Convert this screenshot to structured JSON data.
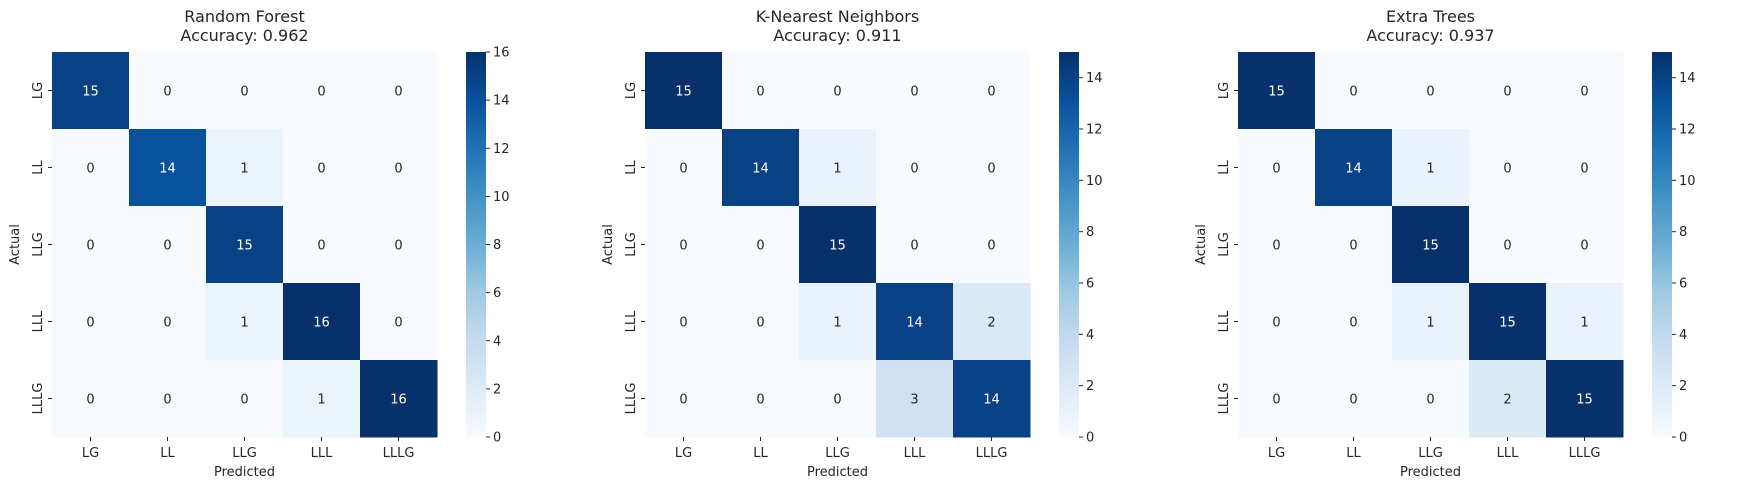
{
  "chart_data": [
    {
      "type": "heatmap",
      "title": "Random Forest",
      "subtitle": "Accuracy: 0.962",
      "xlabel": "Predicted",
      "ylabel": "Actual",
      "x_categories": [
        "LG",
        "LL",
        "LLG",
        "LLL",
        "LLLG"
      ],
      "y_categories": [
        "LG",
        "LL",
        "LLG",
        "LLL",
        "LLLG"
      ],
      "matrix": [
        [
          15,
          0,
          0,
          0,
          0
        ],
        [
          0,
          14,
          1,
          0,
          0
        ],
        [
          0,
          0,
          15,
          0,
          0
        ],
        [
          0,
          0,
          1,
          16,
          0
        ],
        [
          0,
          0,
          0,
          1,
          16
        ]
      ],
      "colorbar": {
        "min": 0,
        "max": 16,
        "ticks": [
          0,
          2,
          4,
          6,
          8,
          10,
          12,
          14,
          16
        ]
      },
      "colormap": [
        "#f7fbff",
        "#deebf7",
        "#c6dbef",
        "#9ecae1",
        "#6baed6",
        "#4292c6",
        "#2171b5",
        "#08519c",
        "#08306b"
      ]
    },
    {
      "type": "heatmap",
      "title": "K-Nearest Neighbors",
      "subtitle": "Accuracy: 0.911",
      "xlabel": "Predicted",
      "ylabel": "Actual",
      "x_categories": [
        "LG",
        "LL",
        "LLG",
        "LLL",
        "LLLG"
      ],
      "y_categories": [
        "LG",
        "LL",
        "LLG",
        "LLL",
        "LLLG"
      ],
      "matrix": [
        [
          15,
          0,
          0,
          0,
          0
        ],
        [
          0,
          14,
          1,
          0,
          0
        ],
        [
          0,
          0,
          15,
          0,
          0
        ],
        [
          0,
          0,
          1,
          14,
          2
        ],
        [
          0,
          0,
          0,
          3,
          14
        ]
      ],
      "colorbar": {
        "min": 0,
        "max": 15,
        "ticks": [
          0,
          2,
          4,
          6,
          8,
          10,
          12,
          14
        ]
      },
      "colormap": [
        "#f7fbff",
        "#deebf7",
        "#c6dbef",
        "#9ecae1",
        "#6baed6",
        "#4292c6",
        "#2171b5",
        "#08519c",
        "#08306b"
      ]
    },
    {
      "type": "heatmap",
      "title": "Extra Trees",
      "subtitle": "Accuracy: 0.937",
      "xlabel": "Predicted",
      "ylabel": "Actual",
      "x_categories": [
        "LG",
        "LL",
        "LLG",
        "LLL",
        "LLLG"
      ],
      "y_categories": [
        "LG",
        "LL",
        "LLG",
        "LLL",
        "LLLG"
      ],
      "matrix": [
        [
          15,
          0,
          0,
          0,
          0
        ],
        [
          0,
          14,
          1,
          0,
          0
        ],
        [
          0,
          0,
          15,
          0,
          0
        ],
        [
          0,
          0,
          1,
          15,
          1
        ],
        [
          0,
          0,
          0,
          2,
          15
        ]
      ],
      "colorbar": {
        "min": 0,
        "max": 15,
        "ticks": [
          0,
          2,
          4,
          6,
          8,
          10,
          12,
          14
        ]
      },
      "colormap": [
        "#f7fbff",
        "#deebf7",
        "#c6dbef",
        "#9ecae1",
        "#6baed6",
        "#4292c6",
        "#2171b5",
        "#08519c",
        "#08306b"
      ]
    }
  ]
}
